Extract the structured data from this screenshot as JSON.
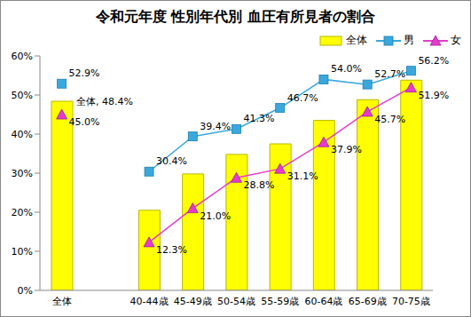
{
  "chart_data": {
    "type": "bar",
    "title": "令和元年度 性別年代別 血圧有所見者の割合",
    "categories": [
      "全体",
      null,
      "40-44歳",
      "45-49歳",
      "50-54歳",
      "55-59歳",
      "60-64歳",
      "65-69歳",
      "70-75歳"
    ],
    "ylim": [
      0,
      60
    ],
    "yticks": [
      {
        "value": 0,
        "label": "0%"
      },
      {
        "value": 10,
        "label": "10%"
      },
      {
        "value": 20,
        "label": "20%"
      },
      {
        "value": 30,
        "label": "30%"
      },
      {
        "value": 40,
        "label": "40%"
      },
      {
        "value": 50,
        "label": "50%"
      },
      {
        "value": 60,
        "label": "60%"
      }
    ],
    "grid": false,
    "legend": "top-right",
    "data_labels": true,
    "series": [
      {
        "name": "全体",
        "type": "bar",
        "color": "#ffff00",
        "values": [
          48.4,
          null,
          20.5,
          29.8,
          34.8,
          37.5,
          43.5,
          48.8,
          53.8
        ],
        "value_labels": [
          "全体, 48.4%",
          null,
          null,
          null,
          null,
          null,
          null,
          null,
          null
        ]
      },
      {
        "name": "男",
        "type": "line",
        "color": "#3aa8dc",
        "marker": "square",
        "values": [
          52.9,
          null,
          30.4,
          39.4,
          41.3,
          46.7,
          54.0,
          52.7,
          56.2
        ],
        "value_labels": [
          "52.9%",
          null,
          "30.4%",
          "39.4%",
          "41.3%",
          "46.7%",
          "54.0%",
          "52.7%",
          "56.2%"
        ]
      },
      {
        "name": "女",
        "type": "line",
        "color": "#e63ccc",
        "marker": "triangle",
        "values": [
          45.0,
          null,
          12.3,
          21.0,
          28.8,
          31.1,
          37.9,
          45.7,
          51.9
        ],
        "value_labels": [
          "45.0%",
          null,
          "12.3%",
          "21.0%",
          "28.8%",
          "31.1%",
          "37.9%",
          "45.7%",
          "51.9%"
        ]
      }
    ]
  }
}
